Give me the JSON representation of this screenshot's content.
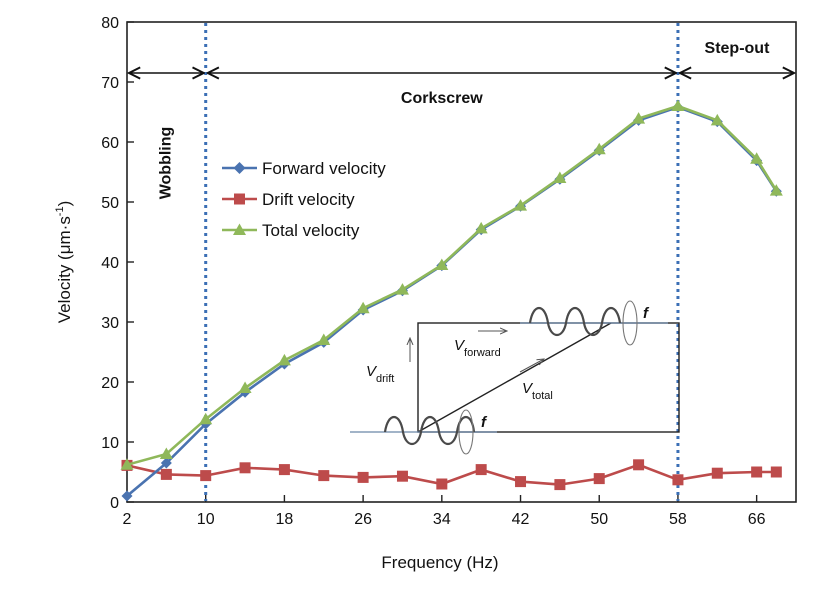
{
  "chart_data": {
    "type": "line",
    "xlabel": "Frequency (Hz)",
    "ylabel_main": "Velocity (μm·s",
    "ylabel_sup": "-1",
    "ylabel_close": ")",
    "xlim": [
      2,
      70
    ],
    "ylim": [
      0,
      80
    ],
    "x_ticks": [
      2,
      10,
      18,
      26,
      34,
      42,
      50,
      58,
      66
    ],
    "y_ticks": [
      0,
      10,
      20,
      30,
      40,
      50,
      60,
      70,
      80
    ],
    "x": [
      2,
      6,
      10,
      14,
      18,
      22,
      26,
      30,
      34,
      38,
      42,
      46,
      50,
      54,
      58,
      62,
      66,
      68
    ],
    "series": [
      {
        "name": "Forward velocity",
        "color": "#4a73b0",
        "marker": "diamond",
        "values": [
          1,
          6.5,
          13,
          18.3,
          23,
          26.6,
          32,
          35.2,
          39.4,
          45.4,
          49.3,
          53.8,
          58.6,
          63.6,
          65.8,
          63.4,
          56.9,
          51.8
        ]
      },
      {
        "name": "Drift velocity",
        "color": "#bd4b4b",
        "marker": "square",
        "values": [
          6.1,
          4.6,
          4.4,
          5.7,
          5.4,
          4.4,
          4.1,
          4.3,
          3.0,
          5.4,
          3.4,
          2.9,
          3.9,
          6.2,
          3.7,
          4.8,
          5.0,
          5.0
        ]
      },
      {
        "name": "Total velocity",
        "color": "#8fb85a",
        "marker": "triangle",
        "values": [
          6.2,
          8,
          13.8,
          19,
          23.6,
          27,
          32.3,
          35.4,
          39.5,
          45.6,
          49.4,
          54,
          58.8,
          63.9,
          66,
          63.6,
          57.2,
          51.9
        ]
      }
    ],
    "vertical_lines": [
      10,
      58
    ],
    "regions": [
      {
        "label": "Wobbling",
        "from": 2,
        "to": 10
      },
      {
        "label": "Corkscrew",
        "from": 10,
        "to": 58
      },
      {
        "label": "Step-out",
        "from": 58,
        "to": 70
      }
    ],
    "legend_position": "upper-left",
    "inset": {
      "drift_label": "V",
      "drift_sub": "drift",
      "forward_label": "V",
      "forward_sub": "forward",
      "total_label": "V",
      "total_sub": "total",
      "freq_label": "f"
    }
  }
}
